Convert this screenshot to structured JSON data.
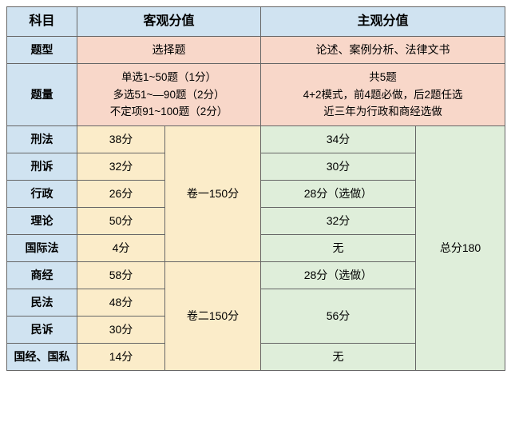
{
  "colors": {
    "blue": "#d0e3f1",
    "pink": "#f8d7c9",
    "yellow": "#fbecc9",
    "green": "#dfeeda",
    "border": "#666666"
  },
  "header": {
    "col0": "科目",
    "obj_title": "客观分值",
    "subj_title": "主观分值"
  },
  "rowlabels": {
    "qtype": "题型",
    "qcount": "题量"
  },
  "qtype": {
    "obj": "选择题",
    "subj": "论述、案例分析、法律文书"
  },
  "qcount": {
    "obj_l1": "单选1~50题（1分）",
    "obj_l2": "多选51~—90题（2分）",
    "obj_l3": "不定项91~100题（2分）",
    "subj_l1": "共5题",
    "subj_l2": "4+2模式，前4题必做，后2题任选",
    "subj_l3": "近三年为行政和商经选做"
  },
  "subjects": {
    "r1": "刑法",
    "r2": "刑诉",
    "r3": "行政",
    "r4": "理论",
    "r5": "国际法",
    "r6": "商经",
    "r7": "民法",
    "r8": "民诉",
    "r9": "国经、国私"
  },
  "obj_scores": {
    "r1": "38分",
    "r2": "32分",
    "r3": "26分",
    "r4": "50分",
    "r5": "4分",
    "r6": "58分",
    "r7": "48分",
    "r8": "30分",
    "r9": "14分"
  },
  "obj_totals": {
    "top": "卷一150分",
    "bot": "卷二150分"
  },
  "subj_scores": {
    "r1": "34分",
    "r2": "30分",
    "r3": "28分（选做）",
    "r4": "32分",
    "r5": "无",
    "r6": "28分（选做）",
    "r78": "56分",
    "r9": "无"
  },
  "subj_total": "总分180"
}
